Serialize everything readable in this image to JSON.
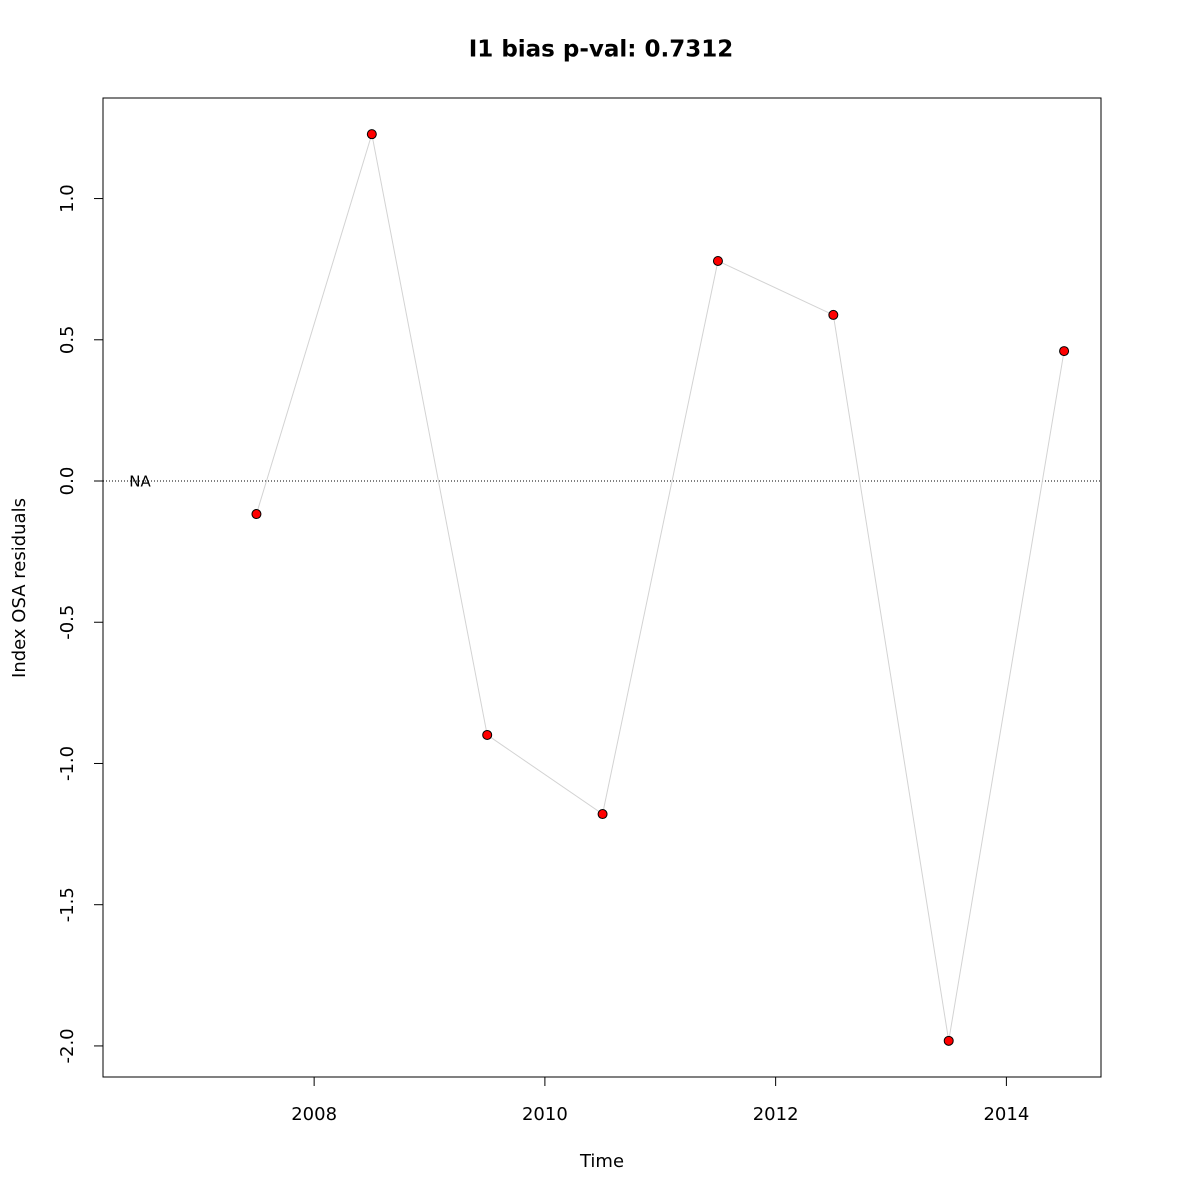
{
  "chart_data": {
    "type": "line",
    "title": "I1 bias p-val: 0.7312",
    "title_color": "#228b22",
    "x_label": "Time",
    "y_label": "Index OSA residuals",
    "annotation": "NA",
    "hline": 0,
    "x": [
      2007.5,
      2008.5,
      2009.5,
      2010.5,
      2011.5,
      2012.5,
      2013.5,
      2014.5
    ],
    "series": [
      {
        "name": "residuals",
        "color": "#ff0000",
        "line_color": "#d3d3d3",
        "values": [
          -0.117,
          1.228,
          -0.899,
          -1.179,
          0.779,
          0.588,
          -1.982,
          0.46
        ]
      }
    ],
    "xlim": [
      2006.17,
      2014.82
    ],
    "xticks": [
      2008,
      2010,
      2012,
      2014
    ],
    "ylim": [
      -2.11,
      1.356
    ],
    "yticks": [
      {
        "value": -2,
        "label": "-2.0"
      },
      {
        "value": -1.5,
        "label": "-1.5"
      },
      {
        "value": -1,
        "label": "-1.0"
      },
      {
        "value": -0.5,
        "label": "-0.5"
      },
      {
        "value": 0,
        "label": "0.0"
      },
      {
        "value": 0.5,
        "label": "0.5"
      },
      {
        "value": 1,
        "label": "1.0"
      }
    ]
  }
}
